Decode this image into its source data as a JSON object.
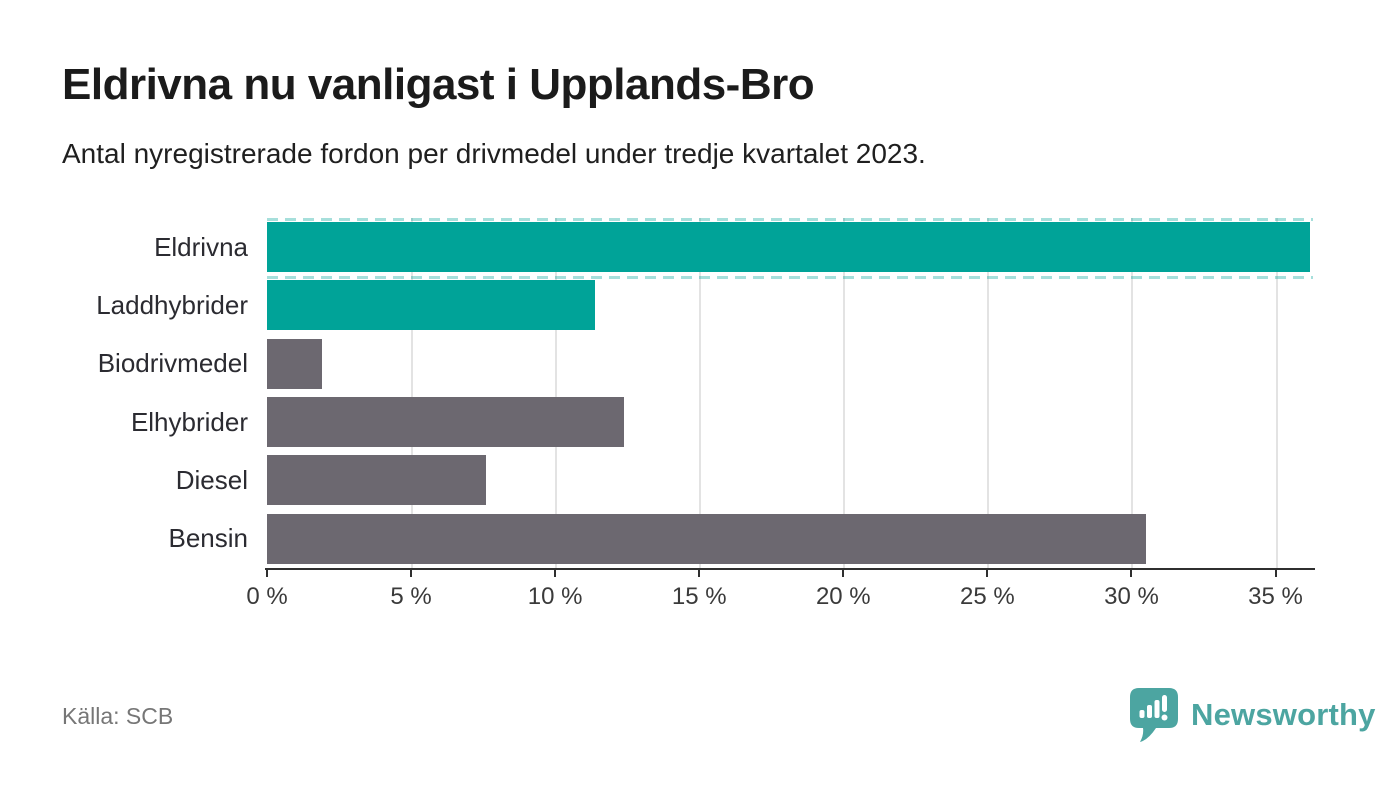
{
  "header": {
    "title": "Eldrivna nu vanligast i Upplands-Bro",
    "subtitle": "Antal nyregistrerade fordon per drivmedel under tredje kvartalet 2023."
  },
  "chart_data": {
    "type": "bar",
    "orientation": "horizontal",
    "title": "Eldrivna nu vanligast i Upplands-Bro",
    "subtitle": "Antal nyregistrerade fordon per drivmedel under tredje kvartalet 2023.",
    "categories": [
      "Eldrivna",
      "Laddhybrider",
      "Biodrivmedel",
      "Elhybrider",
      "Diesel",
      "Bensin"
    ],
    "values": [
      36.2,
      11.4,
      1.9,
      12.4,
      7.6,
      30.5
    ],
    "unit": "%",
    "highlighted": [
      true,
      true,
      false,
      false,
      false,
      false
    ],
    "xlim": [
      0,
      36.3
    ],
    "xticks": [
      0,
      5,
      10,
      15,
      20,
      25,
      30,
      35
    ],
    "xtick_labels": [
      "0 %",
      "5 %",
      "10 %",
      "15 %",
      "20 %",
      "25 %",
      "30 %",
      "35 %"
    ],
    "grid": "vertical-gridlines-behind-bars",
    "legend": "none",
    "colors": {
      "highlight_bar": "#00a398",
      "default_bar": "#6c6870",
      "gridline": "#e3e3e3",
      "axis": "#2f2f2f",
      "dashed_guide": "rgba(0,163,152,0.35)"
    }
  },
  "footer": {
    "source": "Källa: SCB",
    "brand": "Newsworthy",
    "brand_color": "#4ca5a1",
    "logo_icon": "speech-bubble-bar-chart-exclamation"
  }
}
